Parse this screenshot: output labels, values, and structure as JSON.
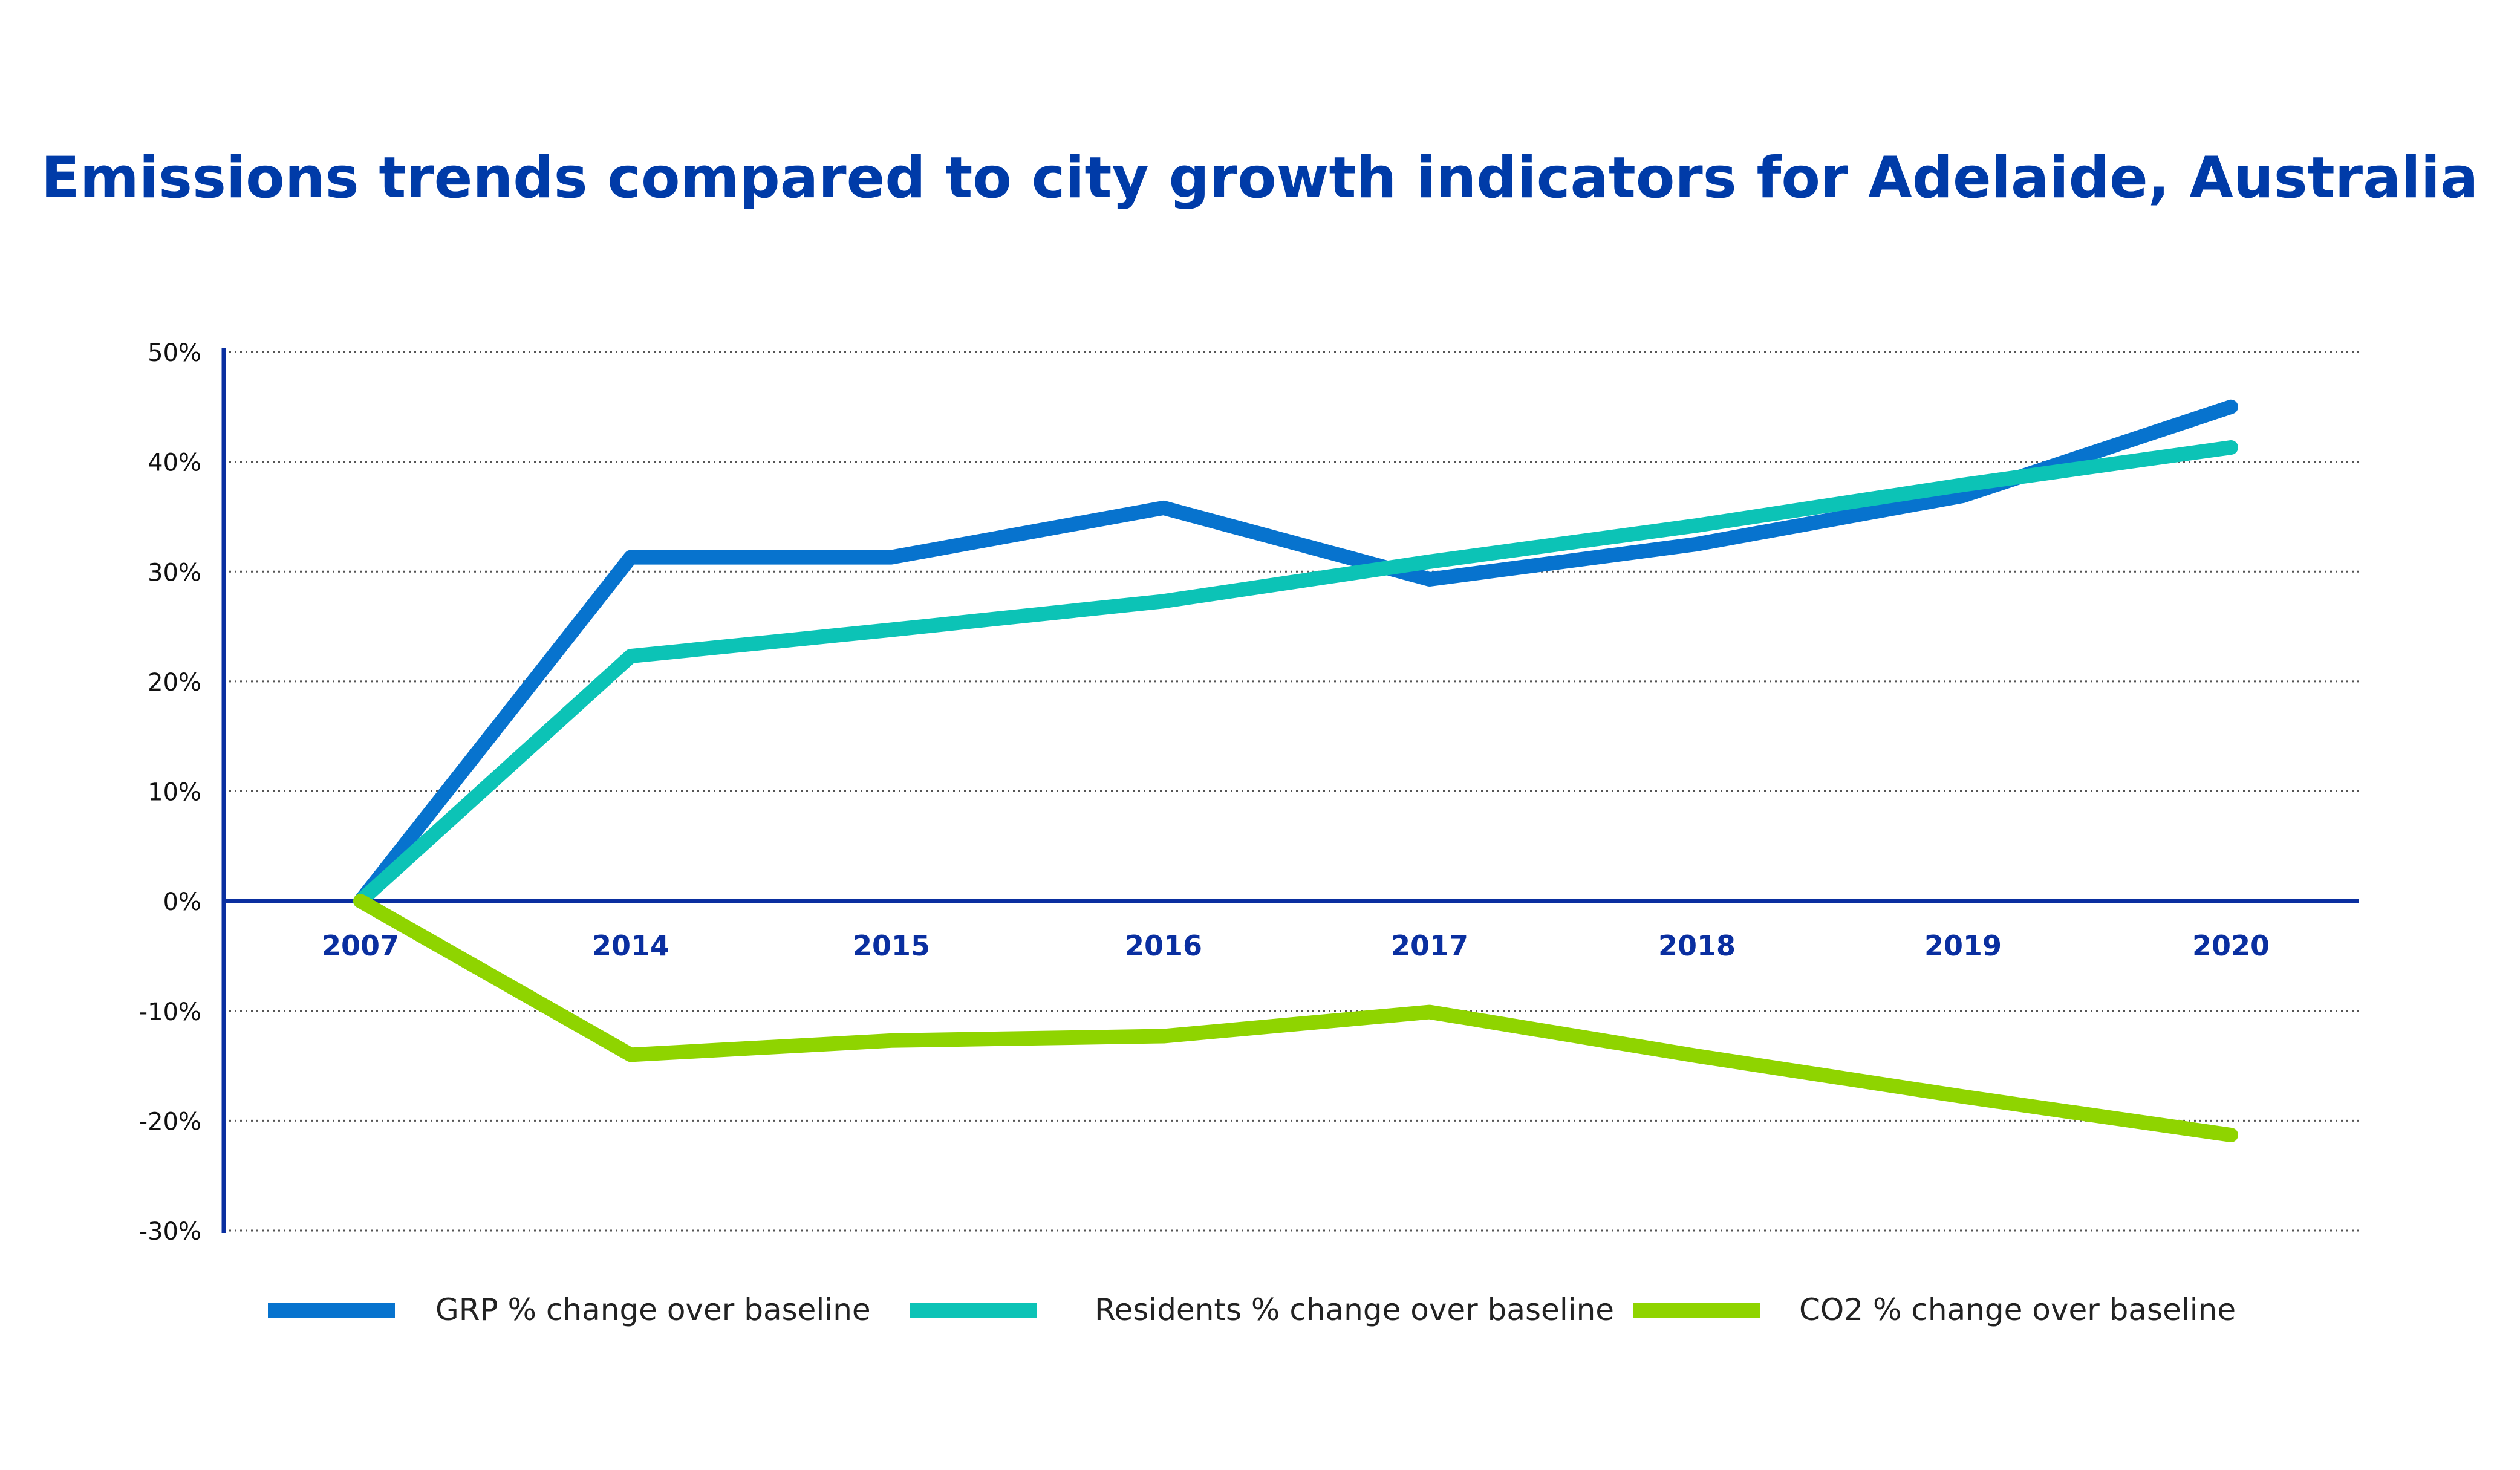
{
  "chart_data": {
    "type": "line",
    "title": "Emissions trends compared to city growth indicators for Adelaide, Australia",
    "xlabel": "",
    "ylabel": "",
    "categories": [
      "2007",
      "2014",
      "2015",
      "2016",
      "2017",
      "2018",
      "2019",
      "2020"
    ],
    "ylim": [
      -30,
      50
    ],
    "yticks": [
      50,
      40,
      30,
      20,
      10,
      0,
      -10,
      -20,
      -30
    ],
    "ytick_labels": [
      "50%",
      "40%",
      "30%",
      "20%",
      "10%",
      "0%",
      "-10%",
      "-20%",
      "-30%"
    ],
    "grid": true,
    "legend_position": "bottom",
    "series": [
      {
        "name": "GRP % change over baseline",
        "color": "#0773CE",
        "values": [
          0,
          31.3,
          31.3,
          35.8,
          29.3,
          32.5,
          36.9,
          45.0
        ]
      },
      {
        "name": "Residents % change over baseline",
        "color": "#0CC3B6",
        "values": [
          0,
          22.3,
          24.7,
          27.3,
          30.9,
          34.2,
          37.9,
          41.3
        ]
      },
      {
        "name": "CO2 % change over baseline",
        "color": "#8FD400",
        "values": [
          0,
          -14.0,
          -12.7,
          -12.3,
          -10.1,
          -14.1,
          -17.8,
          -21.3
        ]
      }
    ],
    "colors": {
      "title": "#003BA8",
      "axis": "#0A2FA0",
      "tick_label": "#111111",
      "xtick_label": "#0A2FA0",
      "grid": "#555555"
    }
  }
}
